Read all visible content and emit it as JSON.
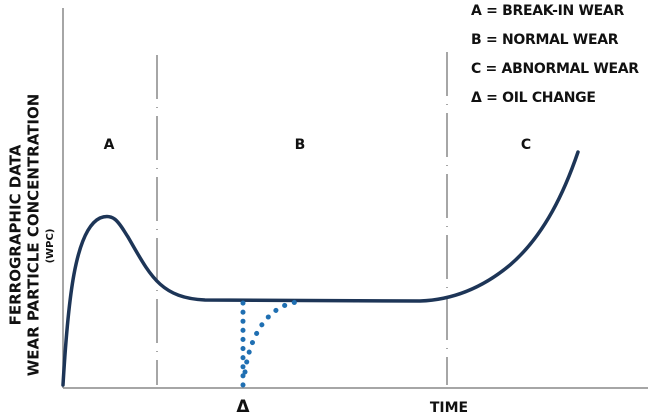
{
  "legend": [
    "A = BREAK-IN WEAR",
    "B = NORMAL WEAR",
    "C = ABNORMAL WEAR",
    "Δ = OIL CHANGE"
  ],
  "regions": [
    "A",
    "B",
    "C"
  ],
  "y_axis": {
    "line1": "FERROGRAPHIC DATA",
    "line2": "WEAR PARTICLE CONCENTRATION",
    "line3": "(WPC)"
  },
  "x_axis": {
    "marker": "Δ",
    "label": "TIME"
  }
}
